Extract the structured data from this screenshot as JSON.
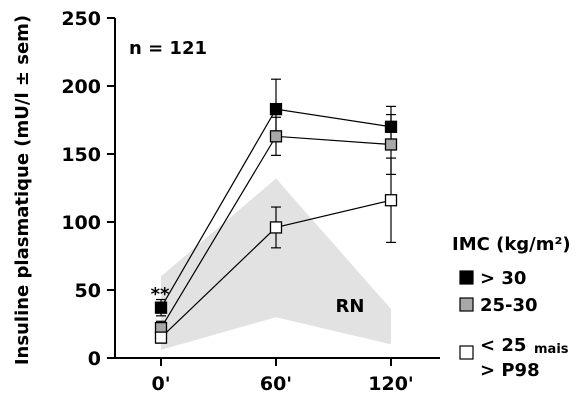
{
  "chart_data": {
    "type": "line",
    "title": "",
    "xlabel": "",
    "ylabel": "Insuline plasmatique (mU/l ± sem)",
    "ylim": [
      0,
      250
    ],
    "yticks": [
      "0",
      "50",
      "100",
      "150",
      "200",
      "250"
    ],
    "categories": [
      "0'",
      "60'",
      "120'"
    ],
    "annotation_n": "n = 121",
    "annotation_sig": "**",
    "reference_band": {
      "label": "RN",
      "color": "#e2e2e2",
      "lower": [
        6,
        30,
        10
      ],
      "upper": [
        60,
        132,
        36
      ]
    },
    "legend_title": "IMC (kg/m²)",
    "series": [
      {
        "name": "> 30",
        "color": "#000000",
        "values": [
          37,
          183,
          170
        ],
        "err": [
          6,
          22,
          15
        ]
      },
      {
        "name": "25-30",
        "color": "#a8a8a8",
        "values": [
          22,
          163,
          157
        ],
        "err": [
          5,
          14,
          22
        ]
      },
      {
        "name_main": "< 25",
        "name_sub": "mais",
        "name_line2": "> P98",
        "color": "#ffffff",
        "values": [
          15,
          96,
          116
        ],
        "err": [
          4,
          15,
          31
        ]
      }
    ]
  }
}
